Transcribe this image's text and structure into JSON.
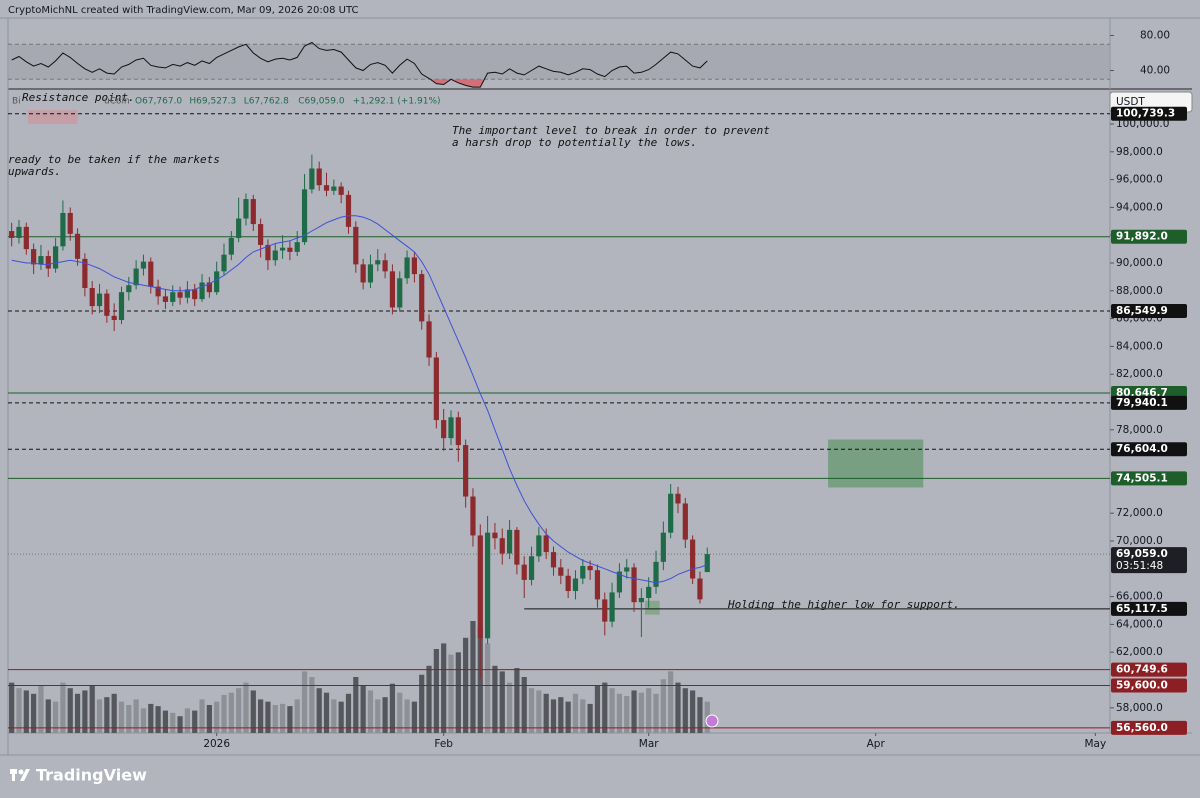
{
  "header": "CryptoMichNL created with TradingView.com, Mar 09, 2026 20:08 UTC",
  "footer": "TradingView",
  "chart_data": {
    "type": "candlestick",
    "symbol_fragments": [
      "Bi",
      "uCoin"
    ],
    "legend": [
      "O67,767.0",
      "H69,527.3",
      "L67,762.8",
      "C69,059.0",
      "+1,292.1 (+1.91%)"
    ],
    "currency": "USDT",
    "xlim": [
      -0.5,
      150
    ],
    "xticks": [
      {
        "value": 28,
        "label": "2026"
      },
      {
        "value": 59,
        "label": "Feb"
      },
      {
        "value": 87,
        "label": "Mar"
      },
      {
        "value": 118,
        "label": "Apr"
      },
      {
        "value": 148,
        "label": "May"
      }
    ],
    "ylim": [
      56187,
      102446
    ],
    "yticks": [
      {
        "value": 100000,
        "label": "100,000.0"
      },
      {
        "value": 98000,
        "label": "98,000.0"
      },
      {
        "value": 96000,
        "label": "96,000.0"
      },
      {
        "value": 94000,
        "label": "94,000.0"
      },
      {
        "value": 92000,
        "label": "92,000.0"
      },
      {
        "value": 90000,
        "label": "90,000.0"
      },
      {
        "value": 88000,
        "label": "88,000.0"
      },
      {
        "value": 86000,
        "label": "86,000.0"
      },
      {
        "value": 84000,
        "label": "84,000.0"
      },
      {
        "value": 82000,
        "label": "82,000.0"
      },
      {
        "value": 78000,
        "label": "78,000.0"
      },
      {
        "value": 72000,
        "label": "72,000.0"
      },
      {
        "value": 70000,
        "label": "70,000.0"
      },
      {
        "value": 66000,
        "label": "66,000.0"
      },
      {
        "value": 64000,
        "label": "64,000.0"
      },
      {
        "value": 62000,
        "label": "62,000.0"
      },
      {
        "value": 58000,
        "label": "58,000.0"
      }
    ],
    "up_color": "#1f6b48",
    "down_color": "#8c2a2e",
    "open": [
      92300,
      91800,
      92600,
      91000,
      89900,
      90500,
      89600,
      91200,
      93600,
      92100,
      90300,
      88200,
      86900,
      87800,
      86200,
      85900,
      87900,
      88400,
      89600,
      90100,
      88300,
      87600,
      87200,
      87900,
      87500,
      88100,
      87400,
      88600,
      87900,
      89400,
      90600,
      91800,
      93200,
      94600,
      92800,
      91300,
      90200,
      90900,
      91100,
      90800,
      91500,
      95300,
      96800,
      95600,
      95200,
      95500,
      94900,
      92600,
      89900,
      88600,
      89900,
      90200,
      89400,
      86800,
      88900,
      90400,
      89200,
      85800,
      83200,
      78700,
      77400,
      78900,
      76900,
      73200,
      70400,
      63000,
      70600,
      70200,
      69100,
      70800,
      68300,
      67200,
      68900,
      70400,
      69200,
      68100,
      67500,
      66400,
      67300,
      68200,
      67900,
      65800,
      64200,
      66300,
      67800,
      68100,
      65600,
      65900,
      66700,
      68500,
      70600,
      73400,
      72700,
      70100,
      67300,
      67767
    ],
    "high": [
      92900,
      93100,
      92900,
      91400,
      91300,
      90900,
      91800,
      94500,
      94000,
      92500,
      90700,
      88700,
      88500,
      88100,
      87100,
      88300,
      89000,
      90200,
      90600,
      90400,
      88800,
      88100,
      88400,
      88300,
      88700,
      88500,
      89200,
      89000,
      90100,
      91400,
      92300,
      94700,
      95000,
      94900,
      93200,
      91700,
      91400,
      92000,
      91600,
      92300,
      96400,
      97800,
      97300,
      96500,
      96000,
      95800,
      95200,
      93000,
      90300,
      90600,
      91000,
      90700,
      89900,
      89400,
      90900,
      90800,
      89500,
      86300,
      83600,
      79500,
      79400,
      79300,
      77300,
      73800,
      71200,
      71800,
      71300,
      70900,
      71500,
      71000,
      68900,
      69600,
      71000,
      70900,
      69600,
      68700,
      68000,
      67900,
      68700,
      68600,
      68300,
      66300,
      67000,
      68400,
      68700,
      68400,
      66600,
      67400,
      69300,
      71400,
      74100,
      73900,
      73100,
      70400,
      67800,
      69527.3
    ],
    "low": [
      91200,
      91400,
      90600,
      89200,
      89500,
      89000,
      89300,
      90900,
      91600,
      89800,
      87600,
      86300,
      86400,
      85700,
      85100,
      85600,
      87300,
      88100,
      89100,
      87800,
      87000,
      86700,
      86900,
      87000,
      87100,
      86900,
      87200,
      87500,
      87700,
      89100,
      90200,
      91500,
      92700,
      92300,
      90400,
      89500,
      89800,
      90300,
      90200,
      90500,
      91300,
      95000,
      95200,
      94800,
      94900,
      94300,
      92100,
      89300,
      88100,
      88200,
      89400,
      88900,
      86300,
      86500,
      88500,
      88600,
      85200,
      82600,
      78100,
      76500,
      76900,
      75700,
      72400,
      69600,
      60100,
      62600,
      69400,
      68300,
      68700,
      67600,
      65900,
      66800,
      68500,
      68700,
      67500,
      66900,
      65900,
      65800,
      66900,
      67200,
      65200,
      63200,
      63800,
      65900,
      67300,
      64900,
      63100,
      65200,
      66200,
      67900,
      70200,
      72000,
      69500,
      66900,
      65500,
      67762.8
    ],
    "close": [
      91800,
      92600,
      91000,
      89900,
      90500,
      89600,
      91200,
      93600,
      92100,
      90300,
      88200,
      86900,
      87800,
      86200,
      85900,
      87900,
      88400,
      89600,
      90100,
      88300,
      87600,
      87200,
      87900,
      87500,
      88100,
      87400,
      88600,
      87900,
      89400,
      90600,
      91800,
      93200,
      94600,
      92800,
      91300,
      90200,
      90900,
      91100,
      90800,
      91500,
      95300,
      96800,
      95600,
      95200,
      95500,
      94900,
      92600,
      89900,
      88600,
      89900,
      90200,
      89400,
      86800,
      88900,
      90400,
      89200,
      85800,
      83200,
      78700,
      77400,
      78900,
      76900,
      73200,
      70400,
      63000,
      70600,
      70200,
      69100,
      70800,
      68300,
      67200,
      68900,
      70400,
      69200,
      68100,
      67500,
      66400,
      67300,
      68200,
      67900,
      65800,
      64200,
      66300,
      67800,
      68100,
      65600,
      65900,
      66700,
      68500,
      70600,
      73400,
      72700,
      70100,
      67300,
      65800,
      69059
    ],
    "ma": {
      "color": "#3f51d8",
      "values": [
        90200,
        90100,
        90000,
        90000,
        89900,
        89900,
        90000,
        90100,
        90200,
        90100,
        90000,
        89800,
        89600,
        89300,
        89000,
        88800,
        88600,
        88500,
        88400,
        88300,
        88200,
        88100,
        88000,
        88000,
        88000,
        88100,
        88300,
        88500,
        88800,
        89100,
        89500,
        89900,
        90400,
        90800,
        91000,
        91200,
        91400,
        91500,
        91600,
        91800,
        92000,
        92300,
        92600,
        92900,
        93100,
        93300,
        93400,
        93400,
        93300,
        93100,
        92800,
        92400,
        92000,
        91600,
        91200,
        90800,
        90100,
        89200,
        88000,
        86800,
        85600,
        84400,
        83200,
        81900,
        80600,
        79400,
        78000,
        76600,
        75200,
        74000,
        72900,
        72000,
        71200,
        70500,
        70000,
        69600,
        69200,
        68900,
        68600,
        68400,
        68200,
        68000,
        67800,
        67600,
        67400,
        67300,
        67200,
        67100,
        67000,
        67100,
        67300,
        67600,
        67800,
        68000,
        68100,
        68300
      ]
    },
    "volume": {
      "values": [
        45,
        40,
        38,
        35,
        42,
        30,
        28,
        45,
        40,
        35,
        38,
        42,
        30,
        32,
        35,
        28,
        25,
        30,
        22,
        26,
        24,
        20,
        18,
        15,
        22,
        20,
        30,
        25,
        28,
        34,
        36,
        40,
        45,
        38,
        30,
        28,
        25,
        26,
        24,
        30,
        55,
        50,
        40,
        36,
        30,
        28,
        35,
        50,
        42,
        38,
        30,
        32,
        44,
        36,
        30,
        28,
        52,
        60,
        75,
        80,
        70,
        72,
        85,
        100,
        95,
        80,
        60,
        55,
        45,
        58,
        50,
        40,
        38,
        35,
        30,
        32,
        28,
        35,
        30,
        26,
        42,
        45,
        40,
        35,
        33,
        38,
        36,
        40,
        35,
        48,
        55,
        45,
        40,
        38,
        32,
        28
      ]
    },
    "levels": [
      {
        "value": 100739.3,
        "label": "100,739.3",
        "color": "#111111",
        "style": "dashed"
      },
      {
        "value": 91892.0,
        "label": "91,892.0",
        "color": "#1e5e2a",
        "style": "solid"
      },
      {
        "value": 86549.9,
        "label": "86,549.9",
        "color": "#111111",
        "style": "dashed"
      },
      {
        "value": 80646.7,
        "label": "80,646.7",
        "color": "#1e5e2a",
        "style": "solid"
      },
      {
        "value": 79940.1,
        "label": "79,940.1",
        "color": "#111111",
        "style": "dashed"
      },
      {
        "value": 76604.0,
        "label": "76,604.0",
        "color": "#111111",
        "style": "dashed"
      },
      {
        "value": 74505.1,
        "label": "74,505.1",
        "color": "#1e5e2a",
        "style": "solid"
      },
      {
        "value": 65117.5,
        "label": "65,117.5",
        "color": "#111111",
        "style": "solid",
        "from": 70
      },
      {
        "value": 60749.6,
        "label": "60,749.6",
        "color": "#8c1f23",
        "style": "solid"
      },
      {
        "value": 59600.0,
        "label": "59,600.0",
        "color": "#8c1f23",
        "style": "solid"
      },
      {
        "value": 56560.0,
        "label": "56,560.0",
        "color": "#8c1f23",
        "style": "solid"
      }
    ],
    "last_price": {
      "value": 69059.0,
      "label": "69,059.0",
      "countdown": "03:51:48"
    },
    "zones": [
      {
        "x": [
          111.5,
          124.5
        ],
        "y": [
          73850,
          77300
        ],
        "color": "#6f9b78"
      },
      {
        "x": [
          86.5,
          88.5
        ],
        "y": [
          64700,
          65700
        ],
        "color": "#7ea583"
      },
      {
        "x": [
          2.2,
          9
        ],
        "y": [
          100000,
          101000
        ],
        "color": "#c99aa2"
      }
    ],
    "annotations": [
      "Resistance point.",
      "ready to be taken if the markets",
      "upwards.",
      "The important level to break in order to prevent",
      "a harsh drop to potentially the lows.",
      "Holding the higher low for support."
    ],
    "rsi": {
      "ylim": [
        20,
        100
      ],
      "yticks": [
        {
          "value": 80,
          "label": "80.00"
        },
        {
          "value": 40,
          "label": "40.00"
        }
      ],
      "band": [
        30,
        70
      ],
      "color": "#111111",
      "values": [
        52,
        56,
        50,
        45,
        48,
        44,
        51,
        60,
        55,
        48,
        42,
        38,
        42,
        37,
        36,
        44,
        47,
        52,
        54,
        46,
        44,
        43,
        47,
        45,
        49,
        46,
        51,
        48,
        55,
        59,
        63,
        67,
        70,
        60,
        54,
        50,
        53,
        54,
        52,
        55,
        68,
        72,
        65,
        63,
        64,
        61,
        52,
        43,
        40,
        47,
        49,
        46,
        37,
        46,
        53,
        48,
        36,
        31,
        25,
        24,
        30,
        26,
        23,
        21,
        21,
        37,
        38,
        36,
        42,
        37,
        35,
        40,
        45,
        42,
        39,
        38,
        35,
        38,
        42,
        41,
        36,
        33,
        40,
        44,
        45,
        37,
        38,
        41,
        47,
        54,
        61,
        59,
        52,
        45,
        43,
        51
      ]
    }
  }
}
